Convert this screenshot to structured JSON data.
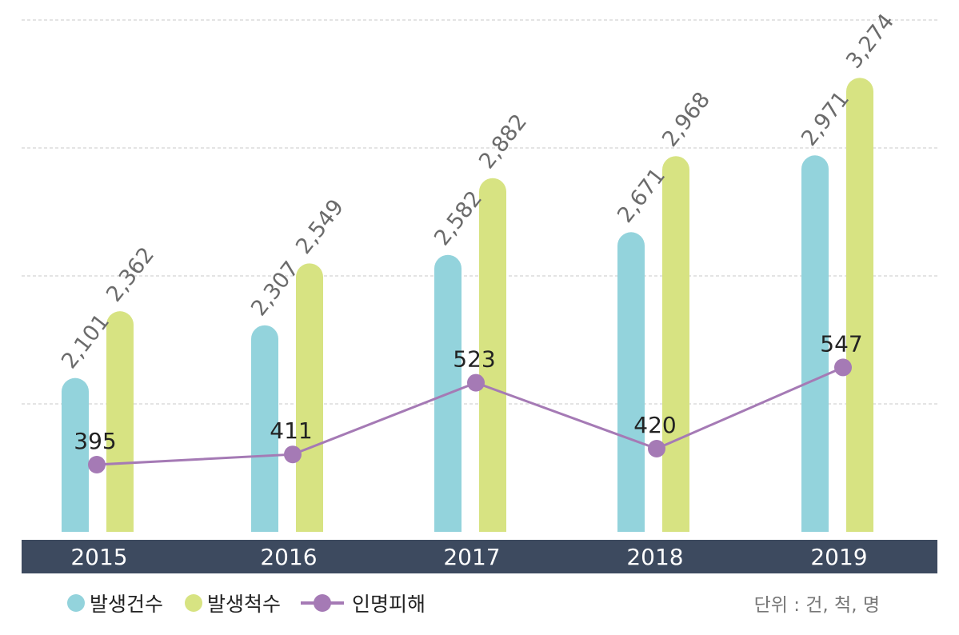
{
  "chart_data": {
    "type": "bar",
    "categories": [
      "2015",
      "2016",
      "2017",
      "2018",
      "2019"
    ],
    "series": [
      {
        "name": "발생건수",
        "type": "bar",
        "values": [
          2101,
          2307,
          2582,
          2671,
          2971
        ],
        "labels": [
          "2,101",
          "2,307",
          "2,582",
          "2,671",
          "2,971"
        ],
        "color": "#93d3dc"
      },
      {
        "name": "발생척수",
        "type": "bar",
        "values": [
          2362,
          2549,
          2882,
          2968,
          3274
        ],
        "labels": [
          "2,362",
          "2,549",
          "2,882",
          "2,968",
          "3,274"
        ],
        "color": "#d7e382"
      },
      {
        "name": "인명피해",
        "type": "line",
        "values": [
          395,
          411,
          523,
          420,
          547
        ],
        "labels": [
          "395",
          "411",
          "523",
          "420",
          "547"
        ],
        "color": "#a57ab5"
      }
    ],
    "ylim": [
      1500,
      3500
    ],
    "grid": true,
    "legend": "bottom-left",
    "unit_note": "단위 : 건, 척, 명",
    "axis_band_color": "#3d4a5f"
  }
}
